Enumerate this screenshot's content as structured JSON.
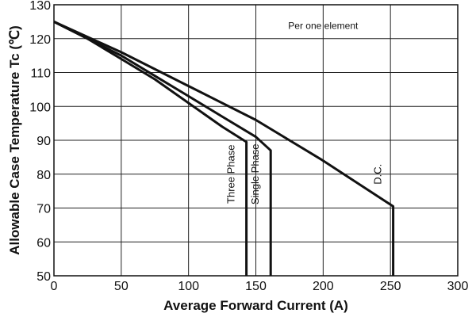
{
  "chart_data": {
    "type": "line",
    "title": "",
    "annotation": "Per one element",
    "xlabel": "Average Forward Current (A)",
    "ylabel": "Allowable Case Temperature Tc (℃)",
    "xlim": [
      0,
      300
    ],
    "ylim": [
      50,
      130
    ],
    "xticks": [
      0,
      50,
      100,
      150,
      200,
      250,
      300
    ],
    "yticks": [
      50,
      60,
      70,
      80,
      90,
      100,
      110,
      120,
      130
    ],
    "grid": true,
    "series": [
      {
        "name": "Three Phase",
        "x": [
          0,
          25,
          50,
          75,
          100,
          125,
          143,
          143
        ],
        "y": [
          125,
          120,
          114,
          108,
          101,
          94,
          89.5,
          50
        ]
      },
      {
        "name": "Single Phase",
        "x": [
          0,
          25,
          50,
          75,
          100,
          125,
          150,
          161,
          161
        ],
        "y": [
          125,
          120,
          115,
          109,
          103,
          97,
          91,
          87,
          50
        ]
      },
      {
        "name": "D.C.",
        "x": [
          0,
          50,
          100,
          150,
          200,
          252,
          252
        ],
        "y": [
          125,
          116,
          106,
          96,
          84,
          70.5,
          50
        ]
      }
    ]
  }
}
